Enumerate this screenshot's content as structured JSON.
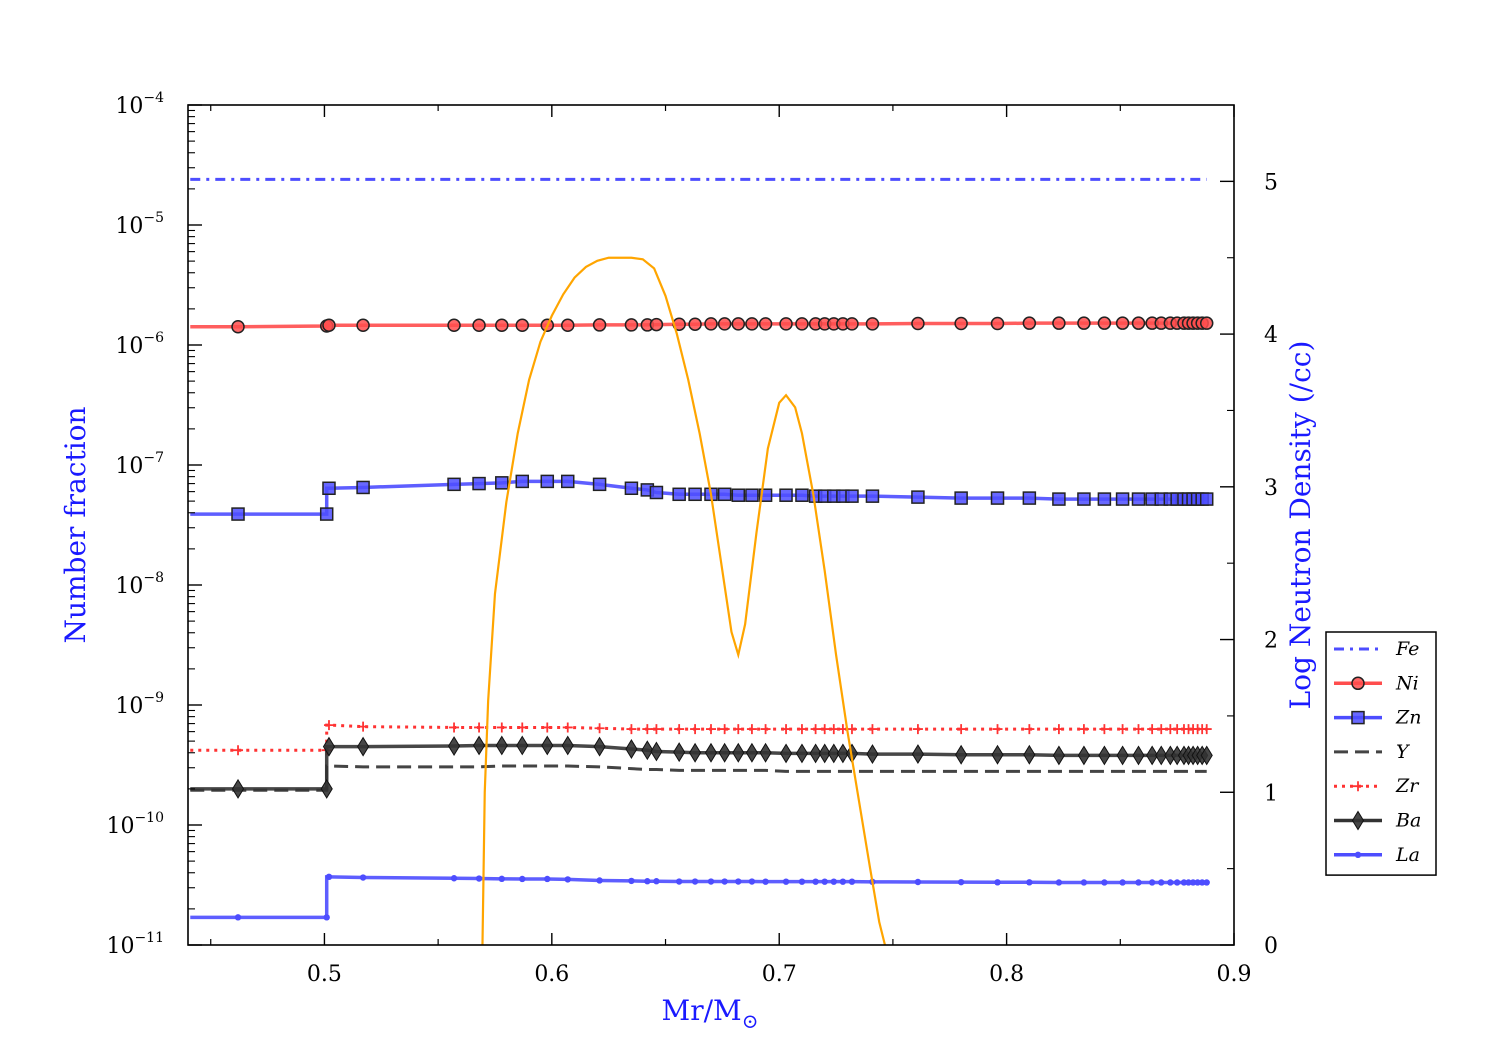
{
  "chart_data": {
    "type": "line",
    "xlabel": "Mr/M",
    "xlabel_sub": "⊙",
    "ylabel": "Number fraction",
    "y2label": "Log Neutron Density (/cc)",
    "xlim": [
      0.44,
      0.9
    ],
    "ylim": [
      1e-11,
      0.0001
    ],
    "yscale": "log",
    "y2lim": [
      0,
      5.5
    ],
    "x_ticks": [
      "0.5",
      "0.6",
      "0.7",
      "0.8",
      "0.9"
    ],
    "y_ticks": [
      {
        "base": "10",
        "exp": "−11"
      },
      {
        "base": "10",
        "exp": "−10"
      },
      {
        "base": "10",
        "exp": "−9"
      },
      {
        "base": "10",
        "exp": "−8"
      },
      {
        "base": "10",
        "exp": "−7"
      },
      {
        "base": "10",
        "exp": "−6"
      },
      {
        "base": "10",
        "exp": "−5"
      },
      {
        "base": "10",
        "exp": "−4"
      }
    ],
    "y2_ticks": [
      "0",
      "1",
      "2",
      "3",
      "4",
      "5"
    ],
    "grid": false,
    "legend_position": "right, outside axes, lower half",
    "x": [
      0.441,
      0.462,
      0.501,
      0.502,
      0.517,
      0.557,
      0.568,
      0.578,
      0.587,
      0.598,
      0.607,
      0.621,
      0.635,
      0.642,
      0.646,
      0.656,
      0.663,
      0.67,
      0.676,
      0.682,
      0.688,
      0.694,
      0.703,
      0.71,
      0.716,
      0.72,
      0.724,
      0.728,
      0.732,
      0.741,
      0.761,
      0.78,
      0.796,
      0.81,
      0.823,
      0.834,
      0.843,
      0.851,
      0.858,
      0.864,
      0.868,
      0.872,
      0.875,
      0.878,
      0.88,
      0.882,
      0.884,
      0.886,
      0.888
    ],
    "series": [
      {
        "name": "Fe",
        "style": "dash-dot",
        "color": "#4d4dff",
        "marker": "none",
        "values": [
          2.4e-05,
          2.4e-05,
          2.4e-05,
          2.4e-05,
          2.4e-05,
          2.4e-05,
          2.4e-05,
          2.4e-05,
          2.4e-05,
          2.4e-05,
          2.4e-05,
          2.4e-05,
          2.4e-05,
          2.4e-05,
          2.4e-05,
          2.4e-05,
          2.4e-05,
          2.4e-05,
          2.4e-05,
          2.4e-05,
          2.4e-05,
          2.4e-05,
          2.4e-05,
          2.4e-05,
          2.4e-05,
          2.4e-05,
          2.4e-05,
          2.4e-05,
          2.4e-05,
          2.4e-05,
          2.4e-05,
          2.4e-05,
          2.4e-05,
          2.4e-05,
          2.4e-05,
          2.4e-05,
          2.4e-05,
          2.4e-05,
          2.4e-05,
          2.4e-05,
          2.4e-05,
          2.4e-05,
          2.4e-05,
          2.4e-05,
          2.4e-05,
          2.4e-05,
          2.4e-05,
          2.4e-05,
          2.4e-05
        ]
      },
      {
        "name": "Ni",
        "style": "solid",
        "color": "#ff4d4d",
        "marker": "circle",
        "values": [
          1.42e-06,
          1.42e-06,
          1.44e-06,
          1.46e-06,
          1.46e-06,
          1.46e-06,
          1.46e-06,
          1.46e-06,
          1.46e-06,
          1.46e-06,
          1.46e-06,
          1.47e-06,
          1.47e-06,
          1.47e-06,
          1.48e-06,
          1.49e-06,
          1.49e-06,
          1.5e-06,
          1.5e-06,
          1.5e-06,
          1.5e-06,
          1.5e-06,
          1.5e-06,
          1.5e-06,
          1.5e-06,
          1.5e-06,
          1.5e-06,
          1.5e-06,
          1.5e-06,
          1.5e-06,
          1.51e-06,
          1.51e-06,
          1.51e-06,
          1.52e-06,
          1.52e-06,
          1.52e-06,
          1.52e-06,
          1.52e-06,
          1.52e-06,
          1.52e-06,
          1.52e-06,
          1.52e-06,
          1.52e-06,
          1.52e-06,
          1.52e-06,
          1.52e-06,
          1.52e-06,
          1.52e-06,
          1.52e-06
        ]
      },
      {
        "name": "Zn",
        "style": "solid",
        "color": "#4d4dff",
        "marker": "square",
        "values": [
          3.9e-08,
          3.9e-08,
          3.9e-08,
          6.4e-08,
          6.5e-08,
          6.9e-08,
          7e-08,
          7.1e-08,
          7.3e-08,
          7.3e-08,
          7.3e-08,
          6.9e-08,
          6.4e-08,
          6.2e-08,
          5.9e-08,
          5.7e-08,
          5.7e-08,
          5.7e-08,
          5.7e-08,
          5.6e-08,
          5.6e-08,
          5.6e-08,
          5.6e-08,
          5.6e-08,
          5.5e-08,
          5.5e-08,
          5.5e-08,
          5.5e-08,
          5.5e-08,
          5.5e-08,
          5.4e-08,
          5.3e-08,
          5.3e-08,
          5.3e-08,
          5.2e-08,
          5.2e-08,
          5.2e-08,
          5.2e-08,
          5.2e-08,
          5.2e-08,
          5.2e-08,
          5.2e-08,
          5.2e-08,
          5.2e-08,
          5.2e-08,
          5.2e-08,
          5.2e-08,
          5.2e-08,
          5.2e-08
        ]
      },
      {
        "name": "Y",
        "style": "dashed",
        "color": "#444444",
        "marker": "none",
        "values": [
          1.95e-10,
          1.95e-10,
          1.95e-10,
          3.1e-10,
          3.05e-10,
          3.05e-10,
          3.05e-10,
          3.1e-10,
          3.1e-10,
          3.1e-10,
          3.1e-10,
          3.05e-10,
          2.95e-10,
          2.9e-10,
          2.9e-10,
          2.85e-10,
          2.85e-10,
          2.85e-10,
          2.85e-10,
          2.85e-10,
          2.85e-10,
          2.85e-10,
          2.8e-10,
          2.8e-10,
          2.8e-10,
          2.8e-10,
          2.8e-10,
          2.8e-10,
          2.8e-10,
          2.8e-10,
          2.8e-10,
          2.8e-10,
          2.8e-10,
          2.8e-10,
          2.8e-10,
          2.8e-10,
          2.8e-10,
          2.8e-10,
          2.8e-10,
          2.8e-10,
          2.8e-10,
          2.8e-10,
          2.8e-10,
          2.8e-10,
          2.8e-10,
          2.8e-10,
          2.8e-10,
          2.8e-10,
          2.8e-10
        ]
      },
      {
        "name": "Zr",
        "style": "dotted",
        "color": "#ff3333",
        "marker": "plus",
        "values": [
          4.2e-10,
          4.2e-10,
          4.2e-10,
          6.8e-10,
          6.6e-10,
          6.5e-10,
          6.5e-10,
          6.5e-10,
          6.5e-10,
          6.5e-10,
          6.5e-10,
          6.4e-10,
          6.3e-10,
          6.3e-10,
          6.3e-10,
          6.3e-10,
          6.3e-10,
          6.3e-10,
          6.3e-10,
          6.3e-10,
          6.3e-10,
          6.3e-10,
          6.3e-10,
          6.3e-10,
          6.3e-10,
          6.3e-10,
          6.3e-10,
          6.3e-10,
          6.3e-10,
          6.3e-10,
          6.3e-10,
          6.3e-10,
          6.3e-10,
          6.3e-10,
          6.3e-10,
          6.3e-10,
          6.3e-10,
          6.3e-10,
          6.3e-10,
          6.3e-10,
          6.3e-10,
          6.3e-10,
          6.3e-10,
          6.3e-10,
          6.3e-10,
          6.3e-10,
          6.3e-10,
          6.3e-10,
          6.3e-10
        ]
      },
      {
        "name": "Ba",
        "style": "solid",
        "color": "#333333",
        "marker": "diamond",
        "values": [
          2e-10,
          2e-10,
          2e-10,
          4.5e-10,
          4.5e-10,
          4.55e-10,
          4.6e-10,
          4.6e-10,
          4.6e-10,
          4.6e-10,
          4.6e-10,
          4.5e-10,
          4.3e-10,
          4.2e-10,
          4.1e-10,
          4.05e-10,
          4e-10,
          4e-10,
          4e-10,
          4e-10,
          4e-10,
          4e-10,
          3.95e-10,
          3.95e-10,
          3.95e-10,
          3.95e-10,
          3.95e-10,
          3.95e-10,
          3.95e-10,
          3.9e-10,
          3.9e-10,
          3.85e-10,
          3.85e-10,
          3.85e-10,
          3.8e-10,
          3.8e-10,
          3.8e-10,
          3.8e-10,
          3.8e-10,
          3.8e-10,
          3.8e-10,
          3.8e-10,
          3.8e-10,
          3.8e-10,
          3.8e-10,
          3.8e-10,
          3.8e-10,
          3.8e-10,
          3.8e-10
        ]
      },
      {
        "name": "La",
        "style": "solid",
        "color": "#4d4dff",
        "marker": "dot",
        "values": [
          1.7e-11,
          1.7e-11,
          1.7e-11,
          3.7e-11,
          3.65e-11,
          3.6e-11,
          3.58e-11,
          3.56e-11,
          3.55e-11,
          3.55e-11,
          3.52e-11,
          3.45e-11,
          3.42e-11,
          3.4e-11,
          3.4e-11,
          3.38e-11,
          3.38e-11,
          3.38e-11,
          3.38e-11,
          3.38e-11,
          3.38e-11,
          3.37e-11,
          3.37e-11,
          3.37e-11,
          3.37e-11,
          3.37e-11,
          3.37e-11,
          3.37e-11,
          3.37e-11,
          3.36e-11,
          3.35e-11,
          3.34e-11,
          3.33e-11,
          3.33e-11,
          3.32e-11,
          3.32e-11,
          3.32e-11,
          3.32e-11,
          3.32e-11,
          3.32e-11,
          3.32e-11,
          3.32e-11,
          3.32e-11,
          3.32e-11,
          3.32e-11,
          3.32e-11,
          3.32e-11,
          3.32e-11,
          3.32e-11
        ]
      }
    ],
    "neutron_density": {
      "axis": "right",
      "color": "#ffa500",
      "x": [
        0.5695,
        0.5705,
        0.572,
        0.575,
        0.58,
        0.585,
        0.59,
        0.595,
        0.6,
        0.605,
        0.61,
        0.615,
        0.62,
        0.625,
        0.63,
        0.635,
        0.64,
        0.645,
        0.65,
        0.655,
        0.66,
        0.665,
        0.67,
        0.675,
        0.679,
        0.682,
        0.685,
        0.69,
        0.695,
        0.7,
        0.703,
        0.707,
        0.71,
        0.715,
        0.72,
        0.725,
        0.73,
        0.735,
        0.74,
        0.744,
        0.7465
      ],
      "values": [
        0.0,
        1.0,
        1.6,
        2.3,
        2.9,
        3.35,
        3.7,
        3.95,
        4.12,
        4.26,
        4.37,
        4.44,
        4.48,
        4.5,
        4.5,
        4.5,
        4.49,
        4.43,
        4.25,
        4.0,
        3.7,
        3.35,
        2.95,
        2.45,
        2.05,
        1.9,
        2.1,
        2.7,
        3.25,
        3.55,
        3.6,
        3.52,
        3.35,
        2.95,
        2.45,
        1.9,
        1.4,
        0.95,
        0.5,
        0.15,
        0.0
      ]
    }
  }
}
